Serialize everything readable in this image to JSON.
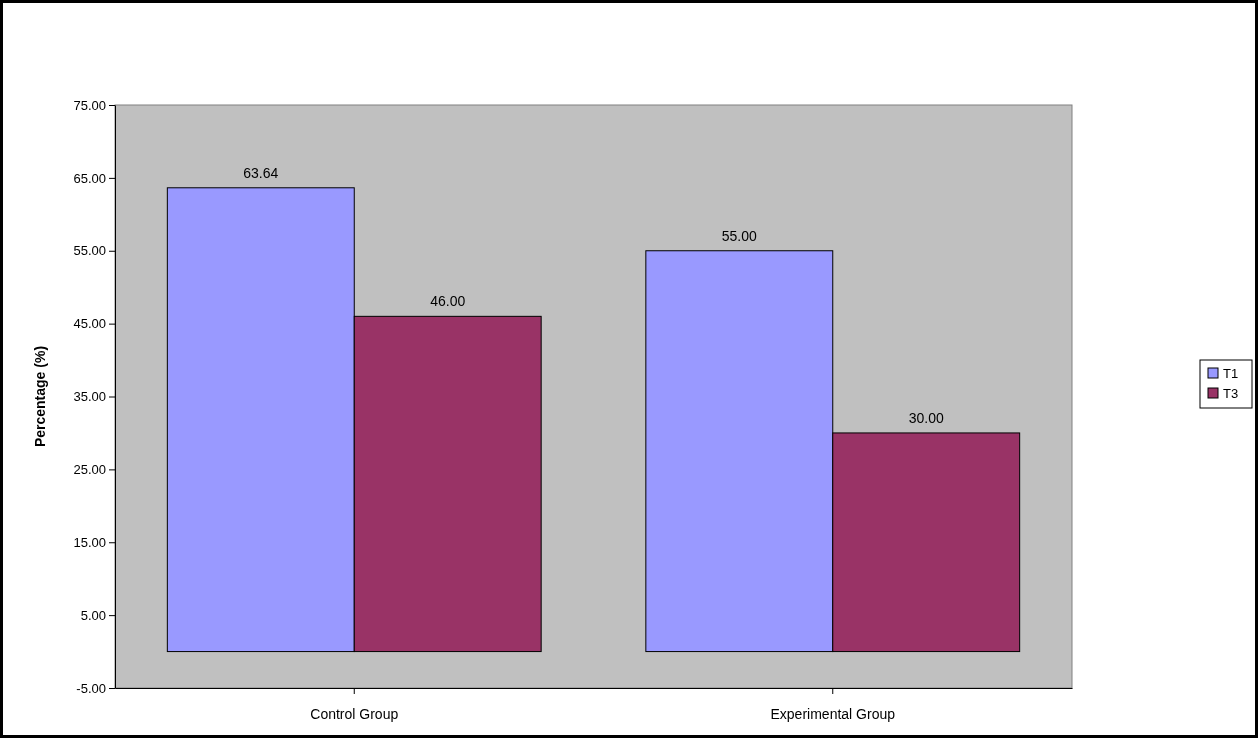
{
  "chart_data": {
    "type": "bar",
    "ylabel": "Percentage (%)",
    "categories": [
      "Control Group",
      "Experimental Group"
    ],
    "series": [
      {
        "name": "T1",
        "color": "#9999ff",
        "values": [
          63.64,
          55
        ],
        "value_labels": [
          "63.64",
          "55.00"
        ]
      },
      {
        "name": "T3",
        "color": "#993366",
        "values": [
          46,
          30
        ],
        "value_labels": [
          "46.00",
          "30.00"
        ]
      }
    ],
    "ylim": [
      -5,
      75
    ],
    "yticks": [
      {
        "value": -5,
        "label": "-5.00"
      },
      {
        "value": 5,
        "label": "5.00"
      },
      {
        "value": 15,
        "label": "15.00"
      },
      {
        "value": 25,
        "label": "25.00"
      },
      {
        "value": 35,
        "label": "35.00"
      },
      {
        "value": 45,
        "label": "45.00"
      },
      {
        "value": 55,
        "label": "55.00"
      },
      {
        "value": 65,
        "label": "65.00"
      },
      {
        "value": 75,
        "label": "75.00"
      }
    ],
    "grid": false,
    "legend": "right"
  }
}
